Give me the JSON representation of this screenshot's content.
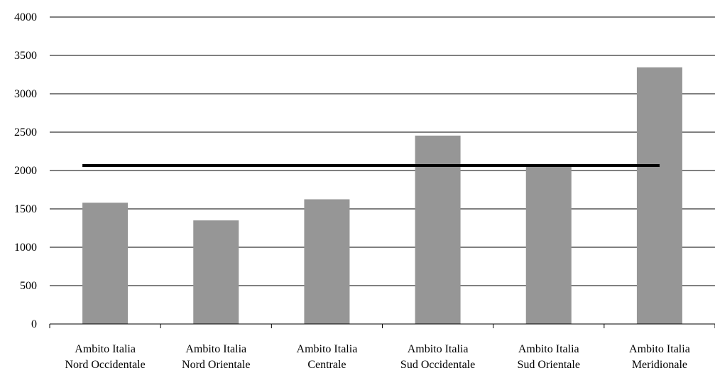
{
  "chart_data": {
    "type": "bar",
    "categories": [
      [
        "Ambito Italia",
        "Nord Occidentale"
      ],
      [
        "Ambito Italia",
        "Nord Orientale"
      ],
      [
        "Ambito Italia",
        "Centrale"
      ],
      [
        "Ambito Italia",
        "Sud Occidentale"
      ],
      [
        "Ambito Italia",
        "Sud Orientale"
      ],
      [
        "Ambito Italia",
        "Meridionale"
      ]
    ],
    "values": [
      1580,
      1350,
      1625,
      2455,
      2065,
      3345
    ],
    "reference_line": 2065,
    "ylim": [
      0,
      4000
    ],
    "yticks": [
      0,
      500,
      1000,
      1500,
      2000,
      2500,
      3000,
      3500,
      4000
    ],
    "grid": true,
    "bar_color": "#969696",
    "line_color": "#000000",
    "grid_color": "#000000"
  }
}
